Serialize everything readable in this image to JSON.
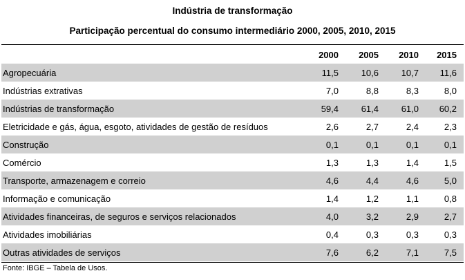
{
  "title": "Indústria de transformação",
  "subtitle": "Participação percentual do consumo intermediário 2000, 2005, 2010, 2015",
  "table": {
    "headers": [
      "",
      "2000",
      "2005",
      "2010",
      "2015"
    ],
    "rows": [
      {
        "label": "Agropecuária",
        "values": [
          "11,5",
          "10,6",
          "10,7",
          "11,6"
        ]
      },
      {
        "label": "Indústrias extrativas",
        "values": [
          "7,0",
          "8,8",
          "8,3",
          "8,0"
        ]
      },
      {
        "label": "Indústrias de transformação",
        "values": [
          "59,4",
          "61,4",
          "61,0",
          "60,2"
        ]
      },
      {
        "label": "Eletricidade e gás, água, esgoto, atividades de gestão de resíduos",
        "values": [
          "2,6",
          "2,7",
          "2,4",
          "2,3"
        ]
      },
      {
        "label": "Construção",
        "values": [
          "0,1",
          "0,1",
          "0,1",
          "0,1"
        ]
      },
      {
        "label": "Comércio",
        "values": [
          "1,3",
          "1,3",
          "1,4",
          "1,5"
        ]
      },
      {
        "label": "Transporte, armazenagem e correio",
        "values": [
          "4,6",
          "4,4",
          "4,6",
          "5,0"
        ]
      },
      {
        "label": "Informação e comunicação",
        "values": [
          "1,4",
          "1,2",
          "1,1",
          "0,8"
        ]
      },
      {
        "label": "Atividades financeiras, de seguros e serviços relacionados",
        "values": [
          "4,0",
          "3,2",
          "2,9",
          "2,7"
        ]
      },
      {
        "label": "Atividades imobiliárias",
        "values": [
          "0,4",
          "0,3",
          "0,3",
          "0,3"
        ]
      },
      {
        "label": "Outras atividades de serviços",
        "values": [
          "7,6",
          "6,2",
          "7,1",
          "7,5"
        ]
      }
    ]
  },
  "source": "Fonte: IBGE – Tabela de Usos.",
  "colors": {
    "row_shade": "#d0d0d0",
    "background": "#ffffff"
  }
}
